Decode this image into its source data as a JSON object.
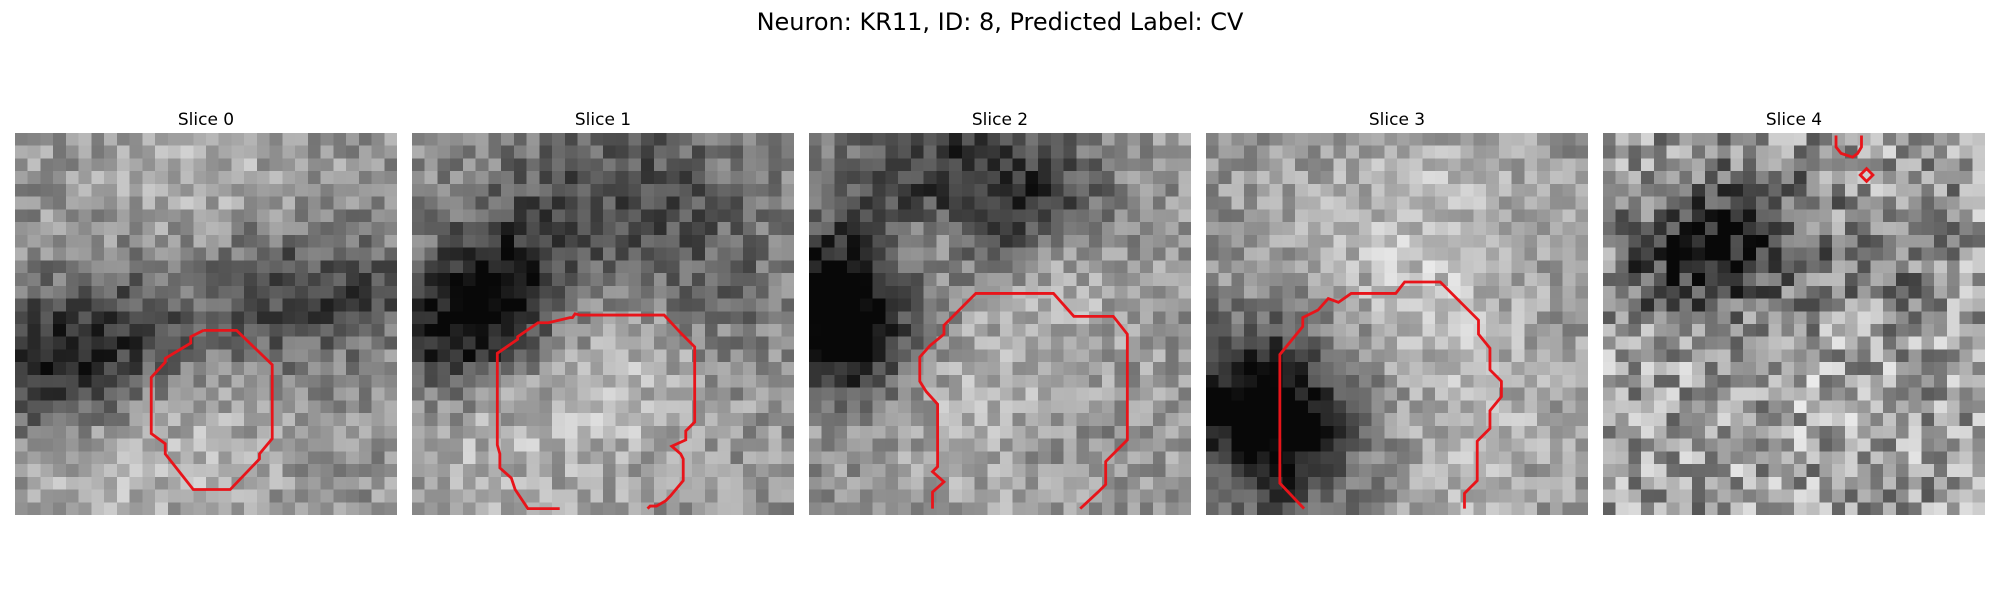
{
  "figure": {
    "title": "Neuron: KR11, ID: 8, Predicted Label: CV"
  },
  "colors": {
    "contour": "#e8141a",
    "colormap": "gray"
  },
  "panels": [
    {
      "title": "Slice 0",
      "seed": 11,
      "icon": "slice-0-contour"
    },
    {
      "title": "Slice 1",
      "seed": 23,
      "icon": "slice-1-contour"
    },
    {
      "title": "Slice 2",
      "seed": 37,
      "icon": "slice-2-contour"
    },
    {
      "title": "Slice 3",
      "seed": 49,
      "icon": "slice-3-contour"
    },
    {
      "title": "Slice 4",
      "seed": 61,
      "icon": "slice-4-contour"
    }
  ]
}
